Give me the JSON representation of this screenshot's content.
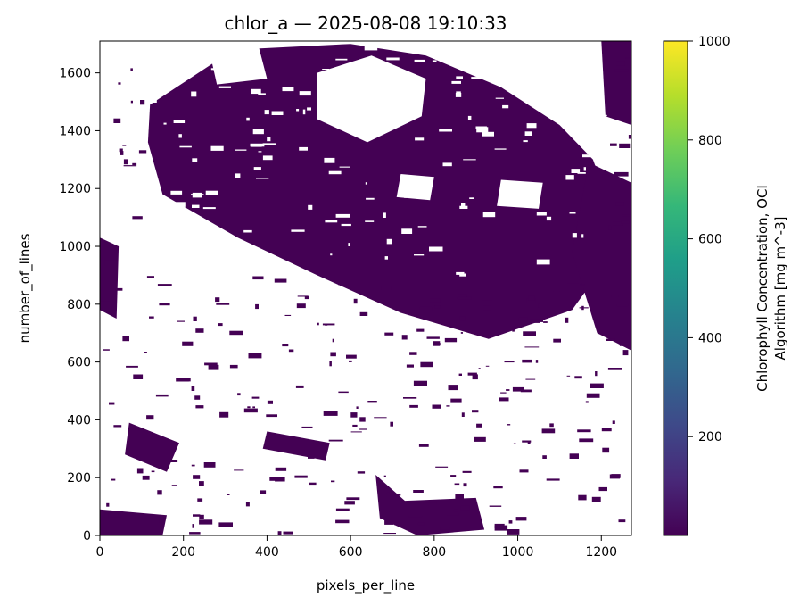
{
  "chart_data": {
    "type": "heatmap",
    "title": "chlor_a — 2025-08-08 19:10:33",
    "xlabel": "pixels_per_line",
    "ylabel": "number_of_lines",
    "xlim": [
      0,
      1272
    ],
    "ylim": [
      0,
      1710
    ],
    "x_ticks": [
      0,
      200,
      400,
      600,
      800,
      1000,
      1200
    ],
    "y_ticks": [
      0,
      200,
      400,
      600,
      800,
      1000,
      1200,
      1400,
      1600
    ],
    "colorbar": {
      "label_lines": [
        "Chlorophyll Concentration, OCI",
        "Algorithm [mg m^-3]"
      ],
      "range": [
        0,
        1000
      ],
      "ticks": [
        200,
        400,
        600,
        800,
        1000
      ],
      "colormap": "viridis",
      "stops": [
        "#440154",
        "#482878",
        "#3e4989",
        "#31688e",
        "#26828e",
        "#1f9e89",
        "#35b779",
        "#6ece58",
        "#b5de2b",
        "#fde725"
      ]
    },
    "no_data_color": "#ffffff",
    "field_color": "#440154",
    "regions": [
      {
        "name": "north-mass",
        "x": [
          120,
          320,
          600,
          780,
          960,
          1100,
          1180,
          1215,
          1215,
          1130,
          930,
          720,
          520,
          330,
          150,
          115
        ],
        "y": [
          1490,
          1680,
          1700,
          1660,
          1550,
          1420,
          1300,
          1160,
          950,
          780,
          680,
          770,
          900,
          1030,
          1180,
          1360
        ]
      },
      {
        "name": "northeast-band",
        "x": [
          1170,
          1272,
          1272,
          1190,
          1130
        ],
        "y": [
          1290,
          1220,
          640,
          700,
          980
        ]
      },
      {
        "name": "top-right-strip",
        "x": [
          1200,
          1272,
          1272,
          1210
        ],
        "y": [
          1710,
          1710,
          1420,
          1450
        ]
      },
      {
        "name": "west-edge-cluster",
        "x": [
          0,
          45,
          40,
          0
        ],
        "y": [
          1030,
          1000,
          750,
          780
        ]
      },
      {
        "name": "southwest-cluster",
        "x": [
          70,
          190,
          160,
          60
        ],
        "y": [
          390,
          320,
          220,
          280
        ]
      },
      {
        "name": "south-cluster",
        "x": [
          660,
          730,
          900,
          920,
          760,
          670
        ],
        "y": [
          210,
          120,
          130,
          20,
          0,
          60
        ]
      },
      {
        "name": "bottom-left-scatter",
        "x": [
          0,
          160,
          150,
          0
        ],
        "y": [
          90,
          70,
          0,
          0
        ]
      },
      {
        "name": "mid-south-scatter",
        "x": [
          400,
          550,
          540,
          390
        ],
        "y": [
          360,
          320,
          260,
          300
        ]
      }
    ],
    "clearings": [
      {
        "name": "clear-north-center",
        "x": [
          520,
          650,
          780,
          770,
          640,
          520
        ],
        "y": [
          1600,
          1660,
          1580,
          1450,
          1360,
          1440
        ]
      },
      {
        "name": "clear-north-left",
        "x": [
          260,
          380,
          400,
          280
        ],
        "y": [
          1690,
          1690,
          1580,
          1560
        ]
      },
      {
        "name": "clear-small-1",
        "x": [
          720,
          800,
          790,
          710
        ],
        "y": [
          1250,
          1240,
          1160,
          1170
        ]
      },
      {
        "name": "clear-small-2",
        "x": [
          960,
          1060,
          1050,
          950
        ],
        "y": [
          1230,
          1220,
          1130,
          1140
        ]
      }
    ]
  }
}
